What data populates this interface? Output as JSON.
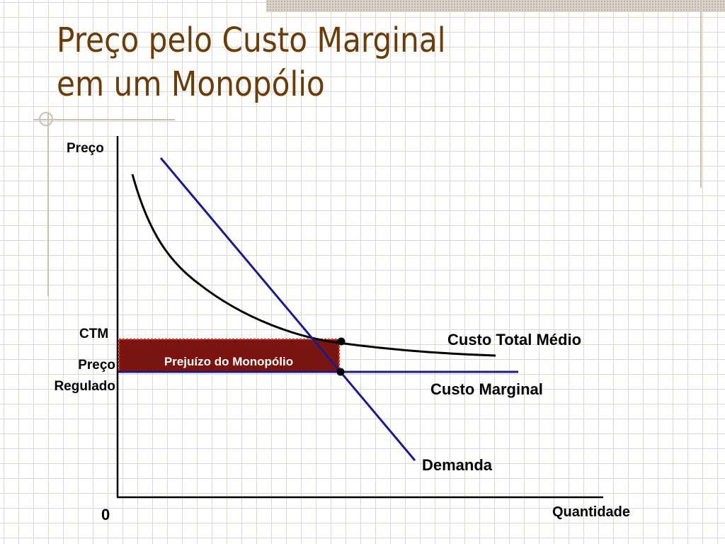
{
  "slide": {
    "title_line1": "Preço pelo Custo Marginal",
    "title_line2": "em um Monopólio"
  },
  "diagram": {
    "y_axis_label": "Preço",
    "x_axis_label": "Quantidade",
    "origin_label": "0",
    "ctm_label": "CTM",
    "regulated_price_label_line1": "Preço",
    "regulated_price_label_line2": "Regulado",
    "loss_area_label": "Prejuízo do Monopólio",
    "curves": {
      "average_total_cost": "Custo Total Médio",
      "marginal_cost": "Custo Marginal",
      "demand": "Demanda"
    },
    "colors": {
      "title": "#6b3b0a",
      "demand_line": "#1a1a8c",
      "marginal_cost_line": "#1a1a8c",
      "average_total_cost_curve": "#000000",
      "loss_area_fill": "#7a1410",
      "loss_area_border": "#e03020"
    }
  }
}
